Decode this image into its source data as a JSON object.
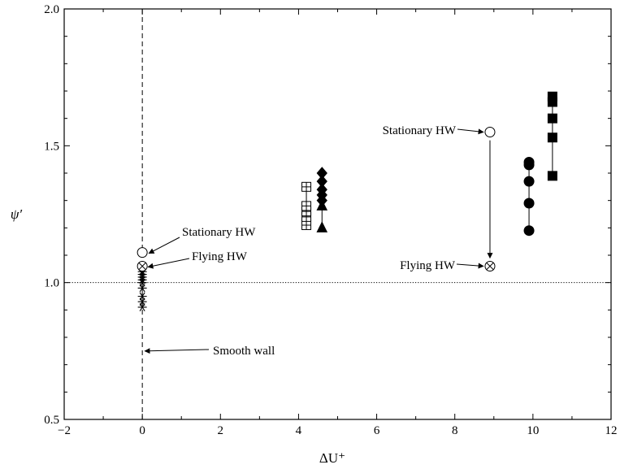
{
  "chart_data": {
    "type": "scatter",
    "xlabel": "ΔU⁺",
    "ylabel": "ψ′",
    "xlim": [
      -2,
      12
    ],
    "ylim": [
      0.5,
      2.0
    ],
    "xticks": [
      -2,
      0,
      2,
      4,
      6,
      8,
      10,
      12
    ],
    "yticks": [
      0.5,
      1.0,
      1.5,
      2.0
    ],
    "xtick_labels": [
      "−2",
      "0",
      "2",
      "4",
      "6",
      "8",
      "10",
      "12"
    ],
    "ytick_labels": [
      "0.5",
      "1.0",
      "1.5",
      "2.0"
    ],
    "grid": false,
    "reference_lines": [
      {
        "orientation": "vertical",
        "value": 0,
        "style": "dashed"
      },
      {
        "orientation": "horizontal",
        "value": 1.0,
        "style": "dotted"
      }
    ],
    "series": [
      {
        "marker": "asterisk",
        "fill": "none",
        "connected": true,
        "x": [
          0,
          0,
          0,
          0,
          0,
          0,
          0,
          0,
          0
        ],
        "y": [
          0.91,
          0.93,
          0.95,
          0.98,
          1.0,
          1.01,
          1.02,
          1.03,
          1.04
        ]
      },
      {
        "marker": "circle",
        "fill": "open",
        "connected": false,
        "x": [
          0
        ],
        "y": [
          1.11
        ]
      },
      {
        "marker": "circle-cross",
        "fill": "open",
        "connected": false,
        "x": [
          0
        ],
        "y": [
          1.06
        ]
      },
      {
        "marker": "square",
        "fill": "open-plus",
        "connected": true,
        "x": [
          4.2,
          4.2,
          4.2,
          4.2,
          4.2
        ],
        "y": [
          1.21,
          1.24,
          1.26,
          1.28,
          1.35
        ]
      },
      {
        "marker": "triangle",
        "fill": "filled",
        "connected": true,
        "x": [
          4.6,
          4.6
        ],
        "y": [
          1.2,
          1.28
        ]
      },
      {
        "marker": "diamond",
        "fill": "filled",
        "connected": true,
        "x": [
          4.6,
          4.6,
          4.6,
          4.6,
          4.6
        ],
        "y": [
          1.3,
          1.32,
          1.34,
          1.37,
          1.4
        ]
      },
      {
        "marker": "circle",
        "fill": "filled",
        "connected": true,
        "x": [
          9.9,
          9.9,
          9.9,
          9.9,
          9.9
        ],
        "y": [
          1.19,
          1.29,
          1.37,
          1.43,
          1.44
        ]
      },
      {
        "marker": "square",
        "fill": "filled",
        "connected": true,
        "x": [
          10.5,
          10.5,
          10.5,
          10.5,
          10.5
        ],
        "y": [
          1.39,
          1.53,
          1.6,
          1.66,
          1.68
        ]
      },
      {
        "marker": "circle",
        "fill": "open",
        "connected": false,
        "x": [
          8.9
        ],
        "y": [
          1.55
        ]
      },
      {
        "marker": "circle-cross",
        "fill": "open",
        "connected": false,
        "x": [
          8.9
        ],
        "y": [
          1.06
        ]
      }
    ],
    "annotations": [
      {
        "text": "Stationary HW",
        "arrow_to": [
          0,
          1.11
        ]
      },
      {
        "text": "Flying HW",
        "arrow_to": [
          0,
          1.06
        ]
      },
      {
        "text": "Smooth wall",
        "arrow_to": [
          0,
          0.75
        ]
      },
      {
        "text": "Stationary HW",
        "arrow_to": [
          8.9,
          1.55
        ]
      },
      {
        "text": "Flying HW",
        "arrow_to": [
          8.9,
          1.06
        ]
      }
    ],
    "arrows": [
      {
        "from": [
          8.9,
          1.52
        ],
        "to": [
          8.9,
          1.09
        ]
      }
    ]
  }
}
